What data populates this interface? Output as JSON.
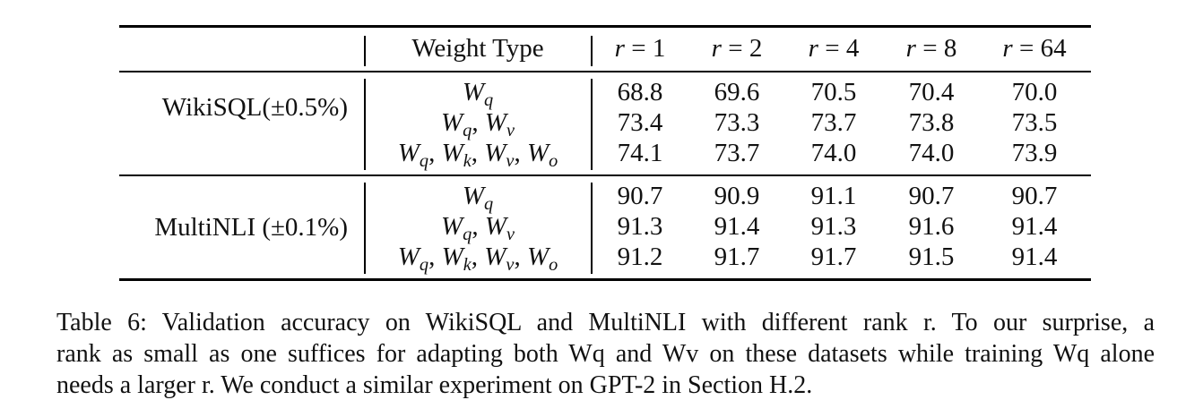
{
  "table": {
    "header": {
      "weight_type": "Weight Type",
      "ranks": [
        "r = 1",
        "r = 2",
        "r = 4",
        "r = 8",
        "r = 64"
      ]
    },
    "groups": [
      {
        "label": "WikiSQL(±0.5%)",
        "rows": [
          {
            "weight": "Wq",
            "values": [
              "68.8",
              "69.6",
              "70.5",
              "70.4",
              "70.0"
            ]
          },
          {
            "weight": "Wq, Wv",
            "values": [
              "73.4",
              "73.3",
              "73.7",
              "73.8",
              "73.5"
            ]
          },
          {
            "weight": "Wq, Wk, Wv, Wo",
            "values": [
              "74.1",
              "73.7",
              "74.0",
              "74.0",
              "73.9"
            ]
          }
        ]
      },
      {
        "label": "MultiNLI (±0.1%)",
        "rows": [
          {
            "weight": "Wq",
            "values": [
              "90.7",
              "90.9",
              "91.1",
              "90.7",
              "90.7"
            ]
          },
          {
            "weight": "Wq, Wv",
            "values": [
              "91.3",
              "91.4",
              "91.3",
              "91.6",
              "91.4"
            ]
          },
          {
            "weight": "Wq, Wk, Wv, Wo",
            "values": [
              "91.2",
              "91.7",
              "91.7",
              "91.5",
              "91.4"
            ]
          }
        ]
      }
    ]
  },
  "caption": {
    "line1": "Table 6: Validation accuracy on WikiSQL and MultiNLI with different rank r. To our surprise, a",
    "line2": "rank as small as one suffices for adapting both Wq and Wv on these datasets while training Wq alone",
    "line3": "needs a larger r. We conduct a similar experiment on GPT-2 in Section H.2."
  }
}
